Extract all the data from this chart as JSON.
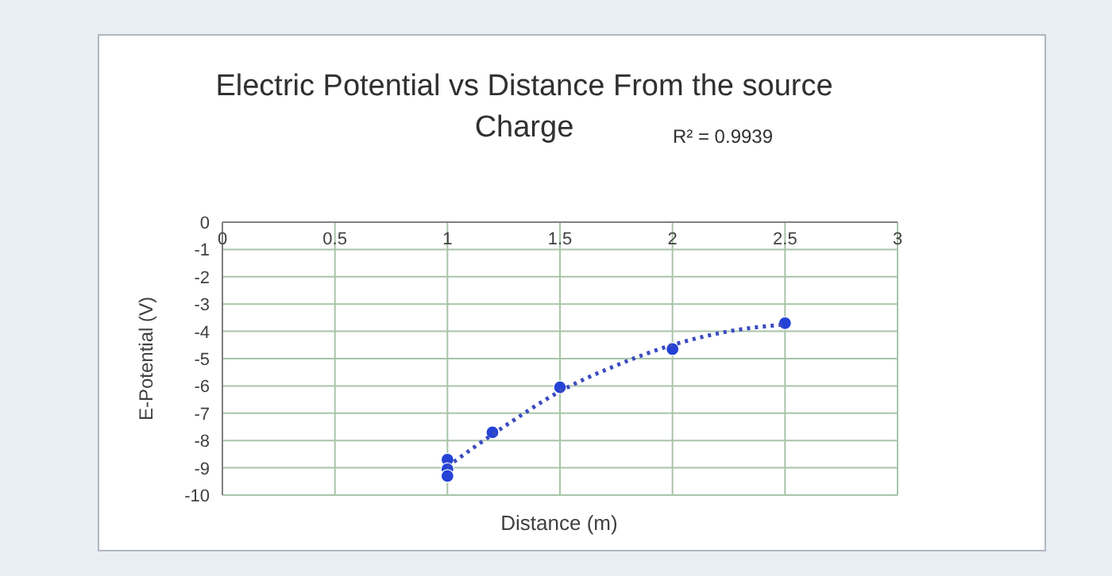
{
  "chart_data": {
    "type": "scatter",
    "title": "Electric Potential vs Distance From the source Charge",
    "xlabel": "Distance (m)",
    "ylabel": "E-Potential (V)",
    "annotations": [
      "R² = 0.9939"
    ],
    "xlim": [
      0,
      3
    ],
    "xticks": [
      0,
      0.5,
      1,
      1.5,
      2,
      2.5,
      3
    ],
    "ylim": [
      -10,
      0
    ],
    "yticks": [
      0,
      -1,
      -2,
      -3,
      -4,
      -5,
      -6,
      -7,
      -8,
      -9,
      -10
    ],
    "grid": true,
    "marker": "circle",
    "series": [
      {
        "color": "#2443d6",
        "x": [
          1,
          1,
          1,
          1.2,
          1.5,
          2,
          2.5
        ],
        "values": [
          -8.7,
          -9.05,
          -9.3,
          -7.7,
          -6.05,
          -4.65,
          -3.7
        ]
      },
      {
        "type": "line",
        "color": "#3b4cc0",
        "line_style": "dotted",
        "marker": "none",
        "x": [
          1,
          1.25,
          1.5,
          1.75,
          2,
          2.25,
          2.5
        ],
        "values": [
          -8.95,
          -7.5,
          -6.2,
          -5.25,
          -4.5,
          -4,
          -3.75
        ]
      }
    ]
  }
}
